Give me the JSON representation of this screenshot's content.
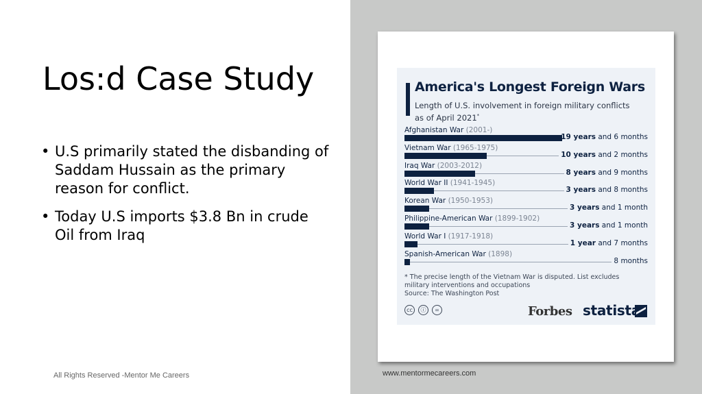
{
  "slide": {
    "title": "Los:d Case Study",
    "bullets": [
      "U.S primarily stated the disbanding of Saddam Hussain as the primary reason for conflict.",
      "Today U.S imports $3.8 Bn in crude Oil from Iraq"
    ],
    "footer_left": "All Rights Reserved -Mentor Me Careers",
    "footer_right": "www.mentormecareers.com"
  },
  "infographic": {
    "title": "America's Longest Foreign Wars",
    "subtitle": "Length of U.S. involvement in foreign military conflicts as of April 2021",
    "subtitle_mark": "*",
    "note": "* The precise length of the Vietnam War is disputed. List excludes military interventions and occupations",
    "source": "Source: The Washington Post",
    "brand_forbes": "Forbes",
    "brand_statista": "statista",
    "accent_color": "#0d2140",
    "cc_icons": [
      "cc-icon",
      "person-icon",
      "equals-icon"
    ]
  },
  "chart_data": {
    "type": "bar",
    "orientation": "horizontal",
    "title": "America's Longest Foreign Wars",
    "subtitle": "Length of U.S. involvement in foreign military conflicts as of April 2021*",
    "unit": "months",
    "categories": [
      {
        "name": "Afghanistan War",
        "years": "(2001-)",
        "value_main": "19 years",
        "value_rest": " and 6 months"
      },
      {
        "name": "Vietnam War",
        "years": "(1965-1975)",
        "value_main": "10 years",
        "value_rest": " and 2 months"
      },
      {
        "name": "Iraq War",
        "years": "(2003-2012)",
        "value_main": "8 years",
        "value_rest": " and 9 months"
      },
      {
        "name": "World War II",
        "years": "(1941-1945)",
        "value_main": "3 years",
        "value_rest": " and 8 months"
      },
      {
        "name": "Korean War",
        "years": "(1950-1953)",
        "value_main": "3 years",
        "value_rest": " and 1 month"
      },
      {
        "name": "Philippine-American War",
        "years": "(1899-1902)",
        "value_main": "3 years",
        "value_rest": " and 1 month"
      },
      {
        "name": "World War I",
        "years": "(1917-1918)",
        "value_main": "1 year",
        "value_rest": " and 7 months"
      },
      {
        "name": "Spanish-American War",
        "years": "(1898)",
        "value_main": "",
        "value_rest": "8 months"
      }
    ],
    "values": [
      234,
      122,
      105,
      44,
      37,
      37,
      19,
      8
    ],
    "legend": "none",
    "grid": false
  }
}
